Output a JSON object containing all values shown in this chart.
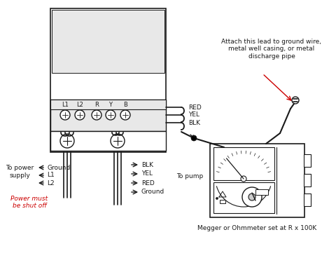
{
  "title": "Megger or Ohmmeter set at R x 100K",
  "top_annotation": "Attach this lead to ground wire,\nmetal well casing, or metal\ndischarge pipe",
  "left_labels": [
    "Ground",
    "L1",
    "L2"
  ],
  "left_title": "To power\nsupply",
  "left_warning": "Power must\nbe shut off",
  "right_labels_top": [
    "RED",
    "YEL",
    "BLK"
  ],
  "right_labels_bottom": [
    "BLK",
    "YEL",
    "RED",
    "Ground"
  ],
  "right_title": "To pump",
  "terminal_labels": [
    "L1",
    "L2",
    "R",
    "Y",
    "B"
  ],
  "bg_color": "#ffffff",
  "line_color": "#1a1a1a",
  "red_color": "#cc0000",
  "light_gray": "#e8e8e8",
  "mid_gray": "#cccccc"
}
